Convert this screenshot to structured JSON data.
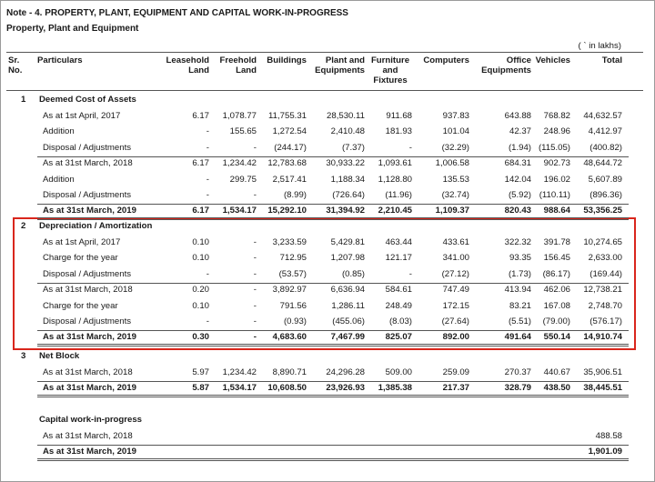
{
  "header": {
    "title": "Note - 4. PROPERTY, PLANT, EQUIPMENT AND CAPITAL WORK-IN-PROGRESS",
    "subtitle": "Property, Plant and Equipment",
    "unit": "( ` in lakhs)"
  },
  "table": {
    "columns": [
      "Sr. No.",
      "Particulars",
      "Leasehold Land",
      "Freehold Land",
      "Buildings",
      "Plant and Equipments",
      "Furniture and Fixtures",
      "Computers",
      "Office Equipments",
      "Vehicles",
      "Total"
    ],
    "sections": [
      {
        "sr": "1",
        "title": "Deemed Cost of Assets",
        "rows": [
          {
            "label": "As at 1st April, 2017",
            "values": [
              "6.17",
              "1,078.77",
              "11,755.31",
              "28,530.11",
              "911.68",
              "937.83",
              "643.88",
              "768.82",
              "44,632.57"
            ]
          },
          {
            "label": "Addition",
            "values": [
              "-",
              "155.65",
              "1,272.54",
              "2,410.48",
              "181.93",
              "101.04",
              "42.37",
              "248.96",
              "4,412.97"
            ]
          },
          {
            "label": "Disposal / Adjustments",
            "values": [
              "-",
              "-",
              "(244.17)",
              "(7.37)",
              "-",
              "(32.29)",
              "(1.94)",
              "(115.05)",
              "(400.82)"
            ]
          },
          {
            "label": "As at 31st March, 2018",
            "values": [
              "6.17",
              "1,234.42",
              "12,783.68",
              "30,933.22",
              "1,093.61",
              "1,006.58",
              "684.31",
              "902.73",
              "48,644.72"
            ]
          },
          {
            "label": "Addition",
            "values": [
              "-",
              "299.75",
              "2,517.41",
              "1,188.34",
              "1,128.80",
              "135.53",
              "142.04",
              "196.02",
              "5,607.89"
            ]
          },
          {
            "label": "Disposal / Adjustments",
            "values": [
              "-",
              "-",
              "(8.99)",
              "(726.64)",
              "(11.96)",
              "(32.74)",
              "(5.92)",
              "(110.11)",
              "(896.36)"
            ]
          },
          {
            "label": "As at 31st March, 2019",
            "bold": true,
            "values": [
              "6.17",
              "1,534.17",
              "15,292.10",
              "31,394.92",
              "2,210.45",
              "1,109.37",
              "820.43",
              "988.64",
              "53,356.25"
            ]
          }
        ]
      },
      {
        "sr": "2",
        "title": "Depreciation / Amortization",
        "rows": [
          {
            "label": "As at 1st April, 2017",
            "values": [
              "0.10",
              "-",
              "3,233.59",
              "5,429.81",
              "463.44",
              "433.61",
              "322.32",
              "391.78",
              "10,274.65"
            ]
          },
          {
            "label": "Charge for the year",
            "values": [
              "0.10",
              "-",
              "712.95",
              "1,207.98",
              "121.17",
              "341.00",
              "93.35",
              "156.45",
              "2,633.00"
            ]
          },
          {
            "label": "Disposal / Adjustments",
            "values": [
              "-",
              "-",
              "(53.57)",
              "(0.85)",
              "-",
              "(27.12)",
              "(1.73)",
              "(86.17)",
              "(169.44)"
            ]
          },
          {
            "label": "As at 31st March, 2018",
            "values": [
              "0.20",
              "-",
              "3,892.97",
              "6,636.94",
              "584.61",
              "747.49",
              "413.94",
              "462.06",
              "12,738.21"
            ]
          },
          {
            "label": "Charge for the year",
            "values": [
              "0.10",
              "-",
              "791.56",
              "1,286.11",
              "248.49",
              "172.15",
              "83.21",
              "167.08",
              "2,748.70"
            ]
          },
          {
            "label": "Disposal / Adjustments",
            "values": [
              "-",
              "-",
              "(0.93)",
              "(455.06)",
              "(8.03)",
              "(27.64)",
              "(5.51)",
              "(79.00)",
              "(576.17)"
            ]
          },
          {
            "label": "As at 31st March, 2019",
            "bold": true,
            "values": [
              "0.30",
              "-",
              "4,683.60",
              "7,467.99",
              "825.07",
              "892.00",
              "491.64",
              "550.14",
              "14,910.74"
            ]
          }
        ]
      },
      {
        "sr": "3",
        "title": "Net Block",
        "rows": [
          {
            "label": "As at 31st March, 2018",
            "values": [
              "5.97",
              "1,234.42",
              "8,890.71",
              "24,296.28",
              "509.00",
              "259.09",
              "270.37",
              "440.67",
              "35,906.51"
            ]
          },
          {
            "label": "As at 31st March, 2019",
            "bold": true,
            "values": [
              "5.87",
              "1,534.17",
              "10,608.50",
              "23,926.93",
              "1,385.38",
              "217.37",
              "328.79",
              "438.50",
              "38,445.51"
            ]
          }
        ]
      },
      {
        "title": "Capital work-in-progress",
        "rows": [
          {
            "label": "As at 31st March, 2018",
            "values": [
              null,
              null,
              null,
              null,
              null,
              null,
              null,
              null,
              "488.58"
            ]
          },
          {
            "label": "As at 31st March, 2019",
            "bold": true,
            "values": [
              null,
              null,
              null,
              null,
              null,
              null,
              null,
              null,
              "1,901.09"
            ]
          }
        ]
      }
    ]
  }
}
